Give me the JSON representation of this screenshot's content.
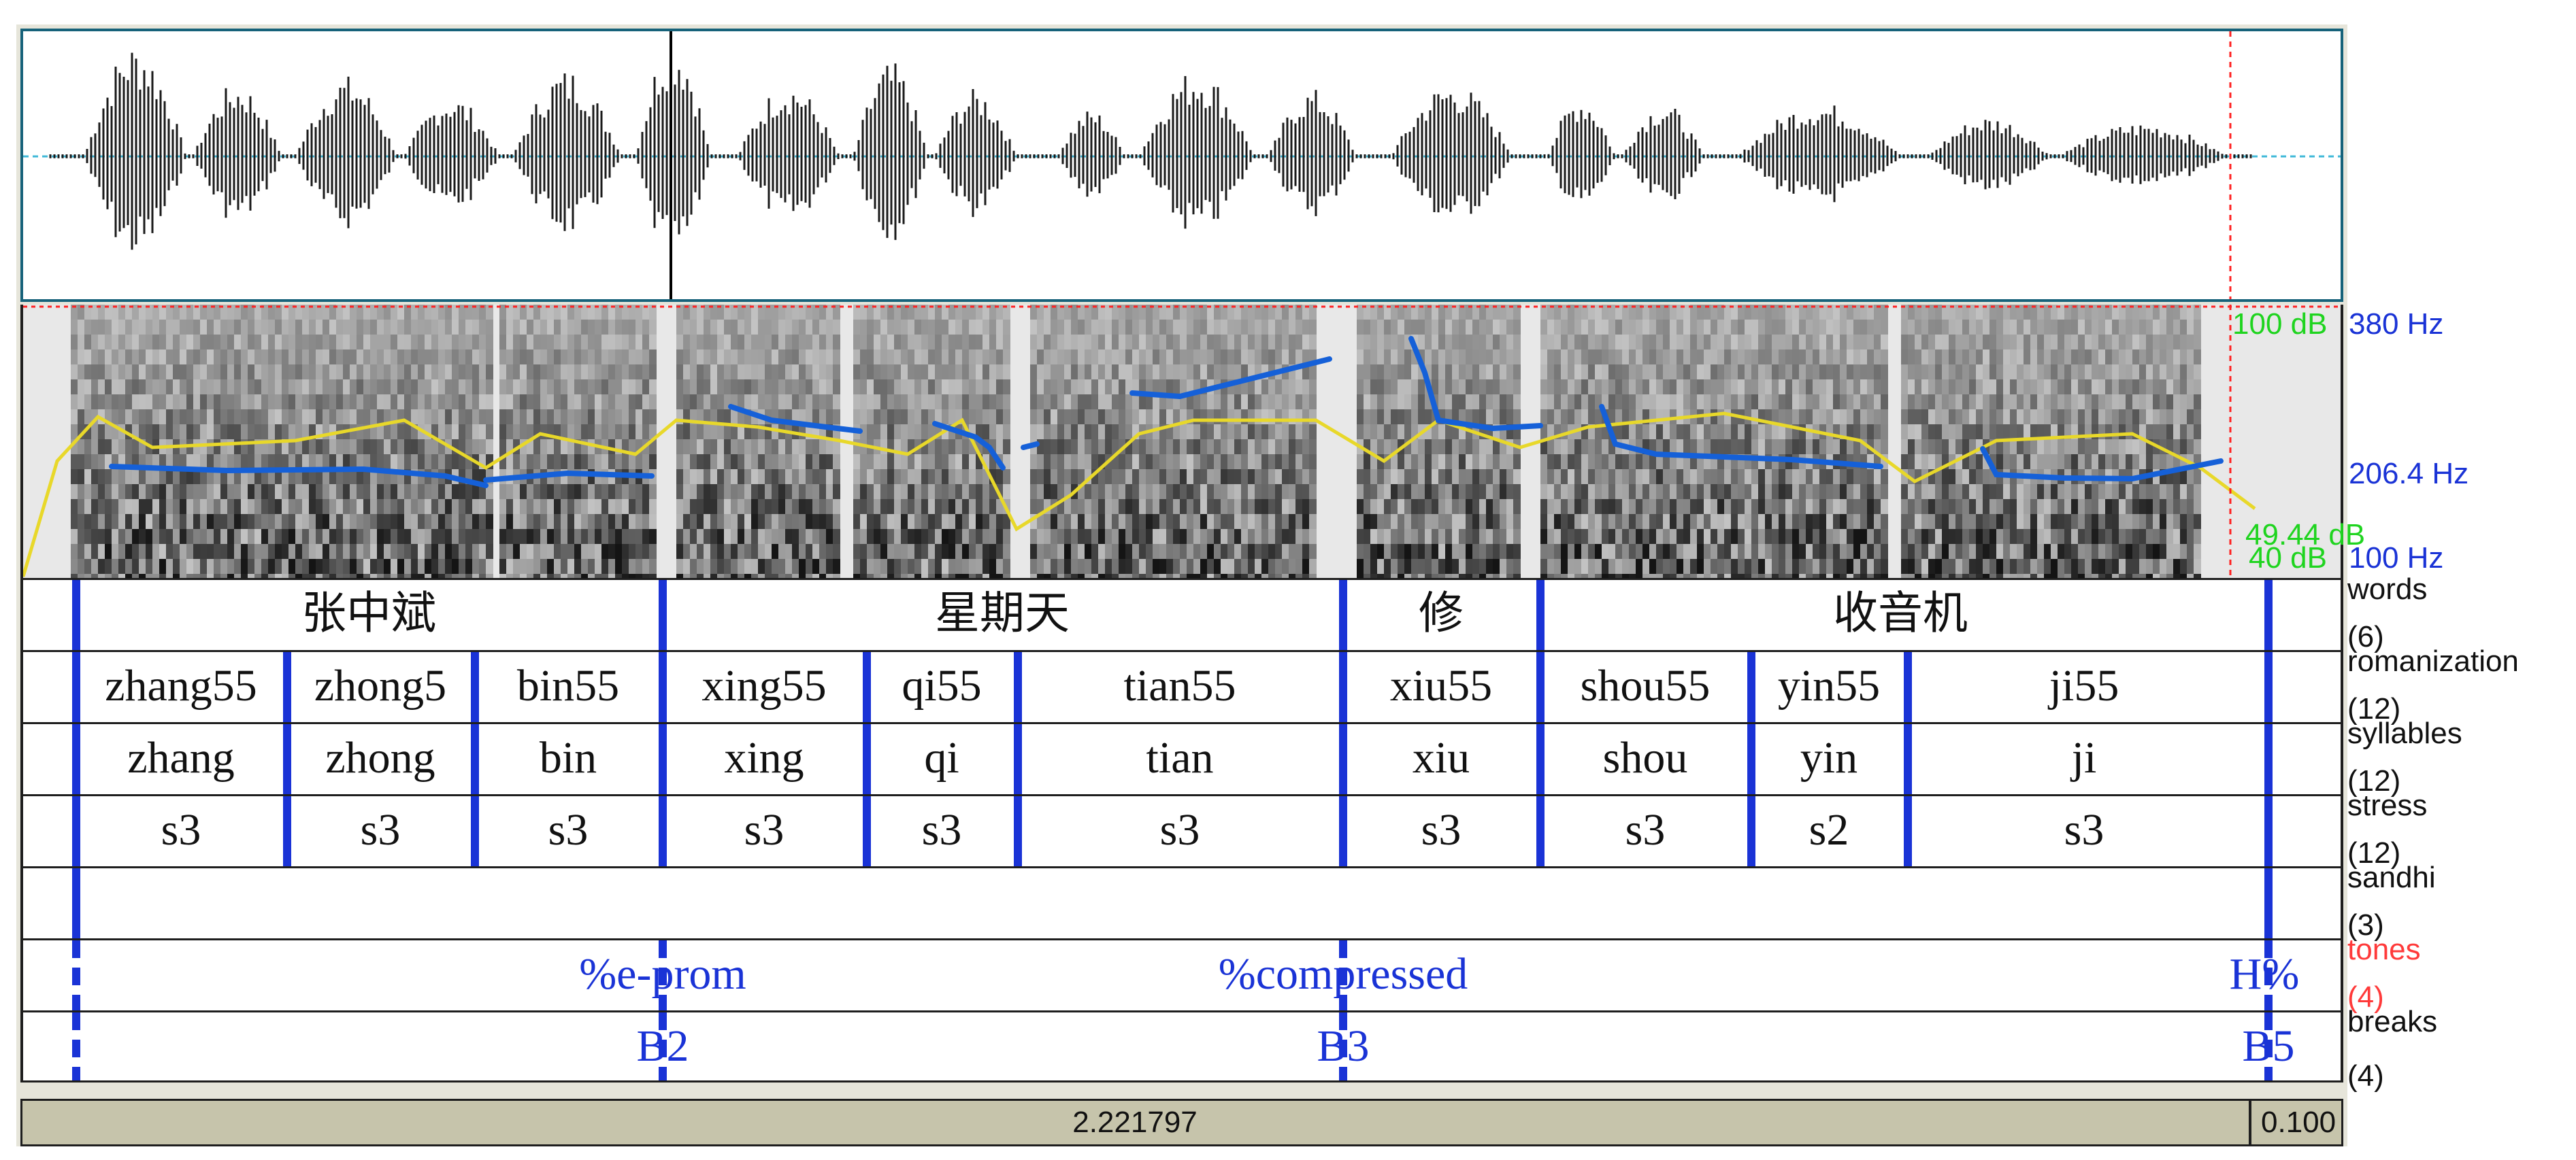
{
  "tiers": [
    {
      "id": "words",
      "label": "words",
      "count": "(6)",
      "cells": [
        {
          "text": "张中斌"
        },
        {
          "text": "星期天"
        },
        {
          "text": "修"
        },
        {
          "text": "收音机"
        },
        {
          "text": ""
        }
      ]
    },
    {
      "id": "romanization",
      "label": "romanization",
      "count": "(12)",
      "cells": [
        {
          "text": "zhang55"
        },
        {
          "text": "zhong5"
        },
        {
          "text": "bin55"
        },
        {
          "text": "xing55"
        },
        {
          "text": "qi55"
        },
        {
          "text": "tian55"
        },
        {
          "text": "xiu55"
        },
        {
          "text": "shou55"
        },
        {
          "text": "yin55"
        },
        {
          "text": "ji55"
        },
        {
          "text": ""
        }
      ]
    },
    {
      "id": "syllables",
      "label": "syllables",
      "count": "(12)",
      "cells": [
        {
          "text": "zhang"
        },
        {
          "text": "zhong"
        },
        {
          "text": "bin"
        },
        {
          "text": "xing"
        },
        {
          "text": "qi"
        },
        {
          "text": "tian"
        },
        {
          "text": "xiu"
        },
        {
          "text": "shou"
        },
        {
          "text": "yin"
        },
        {
          "text": "ji"
        },
        {
          "text": ""
        }
      ]
    },
    {
      "id": "stress",
      "label": "stress",
      "count": "(12)",
      "cells": [
        {
          "text": "s3"
        },
        {
          "text": "s3"
        },
        {
          "text": "s3"
        },
        {
          "text": "s3"
        },
        {
          "text": "s3"
        },
        {
          "text": "s3"
        },
        {
          "text": "s3"
        },
        {
          "text": "s3"
        },
        {
          "text": "s2"
        },
        {
          "text": "s3"
        },
        {
          "text": ""
        }
      ]
    },
    {
      "id": "sandhi",
      "label": "sandhi",
      "count": "(3)",
      "cells": []
    },
    {
      "id": "tones",
      "label": "tones",
      "count": "(4)",
      "labels": [
        {
          "text": "%e-prom"
        },
        {
          "text": "%compressed"
        },
        {
          "text": "H%"
        }
      ]
    },
    {
      "id": "breaks",
      "label": "breaks",
      "count": "(4)",
      "labels": [
        {
          "text": "B2"
        },
        {
          "text": "B3"
        },
        {
          "text": "B5"
        }
      ]
    }
  ],
  "spectrogram": {
    "db_max": "100 dB",
    "db_mid": "49.44 dB",
    "db_min": "40 dB",
    "f0_max": "380 Hz",
    "f0_cursor": "206.4 Hz",
    "f0_min": "100 Hz",
    "pitch_color": "#1560d8",
    "intensity_color": "#e8d82a"
  },
  "time_bar": {
    "visible_duration": "2.221797",
    "right_window": "0.100"
  },
  "colors": {
    "boundary": "#1a33d6",
    "tier_label_selected": "#ff3a3a",
    "frame": "#e6e5da",
    "waveform_border": "#16627a"
  },
  "icons": {
    "cursor_line": "red-dotted-cursor-line"
  }
}
